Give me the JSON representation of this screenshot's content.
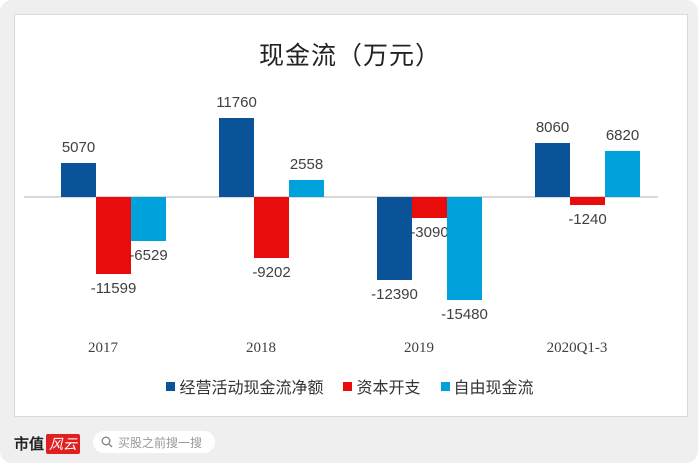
{
  "chart_data": {
    "type": "bar",
    "title": "现金流（万元）",
    "xlabel": "",
    "ylabel": "",
    "categories": [
      "2017",
      "2018",
      "2019",
      "2020Q1-3"
    ],
    "series": [
      {
        "name": "经营活动现金流净额",
        "color": "#0a5398",
        "values": [
          5070,
          11760,
          -12390,
          8060
        ]
      },
      {
        "name": "资本开支",
        "color": "#e80c0c",
        "values": [
          -11599,
          -9202,
          -3090,
          -1240
        ]
      },
      {
        "name": "自由现金流",
        "color": "#00a2dc",
        "values": [
          -6529,
          2558,
          -15480,
          6820
        ]
      }
    ],
    "grid": false,
    "legend_position": "bottom",
    "data_labels": true
  },
  "watermark": "市值风云",
  "footer": {
    "brand_text": "市值",
    "brand_badge": "风云",
    "search_placeholder": "买股之前搜一搜"
  }
}
